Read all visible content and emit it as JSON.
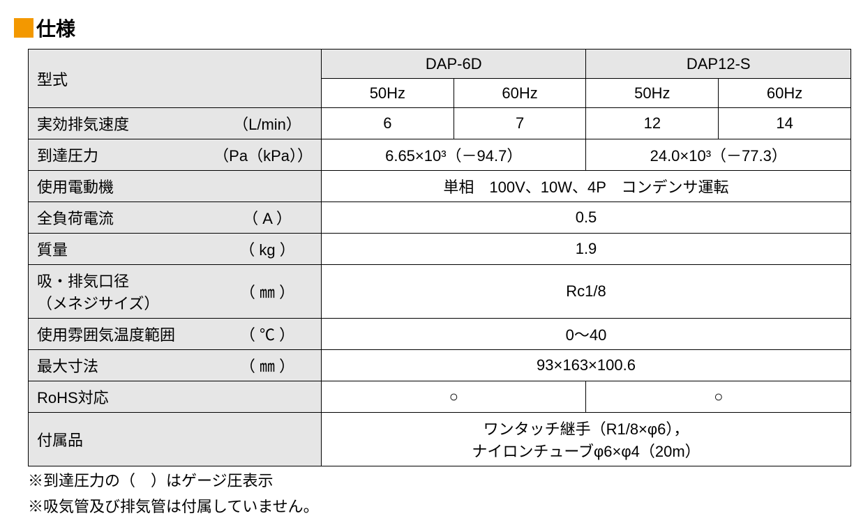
{
  "heading": {
    "marker_color": "#f39800",
    "text": "仕様"
  },
  "table": {
    "header_bg": "#e6e6e6",
    "data_bg": "#ffffff",
    "border_color": "#000000",
    "model_label": "型式",
    "models": [
      "DAP-6D",
      "DAP12-S"
    ],
    "frequencies": [
      "50Hz",
      "60Hz",
      "50Hz",
      "60Hz"
    ],
    "rows": {
      "exhaust_speed": {
        "label": "実効排気速度",
        "unit": "（L/min）",
        "values": [
          "6",
          "7",
          "12",
          "14"
        ]
      },
      "ultimate_pressure": {
        "label": "到達圧力",
        "unit": "（Pa（kPa））",
        "v1": "6.65×10³（－94.7）",
        "v2": "24.0×10³（－77.3）"
      },
      "motor": {
        "label": "使用電動機",
        "unit": "",
        "value": "単相　100V、10W、4P　コンデンサ運転"
      },
      "current": {
        "label": "全負荷電流",
        "unit": "（ A ）",
        "value": "0.5"
      },
      "mass": {
        "label": "質量",
        "unit": "（ kg ）",
        "value": "1.9"
      },
      "port": {
        "label": "吸・排気口径\n（メネジサイズ）",
        "label_line1": "吸・排気口径",
        "label_line2": "（メネジサイズ）",
        "unit": "（ ㎜ ）",
        "value": "Rc1/8"
      },
      "temp": {
        "label": "使用雰囲気温度範囲",
        "unit": "（ ℃ ）",
        "value": "0～40"
      },
      "dimensions": {
        "label": "最大寸法",
        "unit": "（ ㎜ ）",
        "value": "93×163×100.6"
      },
      "rohs": {
        "label": "RoHS対応",
        "unit": "",
        "v1": "○",
        "v2": "○"
      },
      "accessories": {
        "label": "付属品",
        "unit": "",
        "line1": "ワンタッチ継手（R1/8×φ6），",
        "line2": "ナイロンチューブφ6×φ4（20m）"
      }
    }
  },
  "notes": {
    "n1": "※到達圧力の（　）はゲージ圧表示",
    "n2": "※吸気管及び排気管は付属していません。"
  }
}
